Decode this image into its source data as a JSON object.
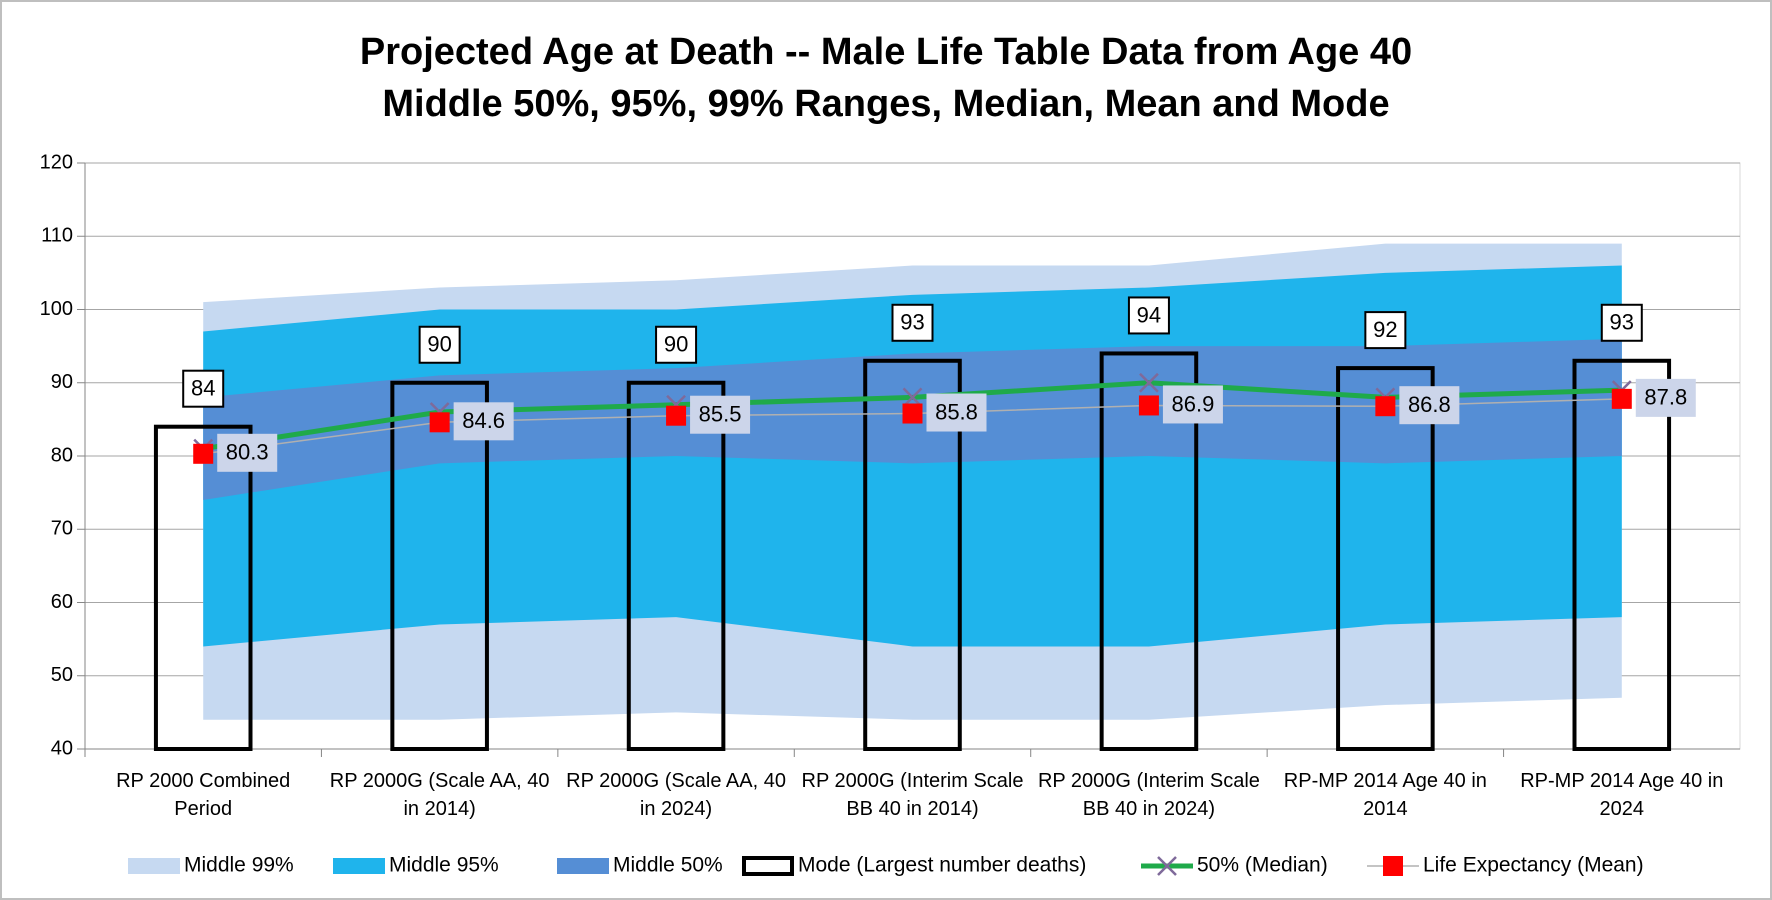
{
  "chart_data": {
    "type": "combo",
    "title": "Projected Age at Death -- Male Life Table Data from Age 40",
    "subtitle": "Middle 50%, 95%, 99% Ranges, Median, Mean and Mode",
    "categories": [
      "RP 2000 Combined Period",
      "RP 2000G (Scale AA, 40 in 2014)",
      "RP 2000G (Scale AA, 40 in 2024)",
      "RP 2000G (Interim Scale BB 40 in 2014)",
      "RP 2000G (Interim Scale BB 40 in 2024)",
      "RP-MP 2014 Age 40 in 2014",
      "RP-MP 2014 Age 40 in 2024"
    ],
    "ylim": [
      40,
      120
    ],
    "yticks": [
      40,
      50,
      60,
      70,
      80,
      90,
      100,
      110,
      120
    ],
    "grid": true,
    "series": [
      {
        "name": "Middle 99%",
        "kind": "range",
        "color": "#c6d9f1",
        "low": [
          44,
          44,
          45,
          44,
          44,
          46,
          47
        ],
        "high": [
          101,
          103,
          104,
          106,
          106,
          109,
          109
        ]
      },
      {
        "name": "Middle 95%",
        "kind": "range",
        "color": "#1fb4ec",
        "low": [
          54,
          57,
          58,
          54,
          54,
          57,
          58
        ],
        "high": [
          97,
          100,
          100,
          102,
          103,
          105,
          106
        ]
      },
      {
        "name": "Middle 50%",
        "kind": "range",
        "color": "#558ed5",
        "low": [
          74,
          79,
          80,
          79,
          80,
          79,
          80
        ],
        "high": [
          88,
          91,
          92,
          94,
          95,
          95,
          96
        ]
      },
      {
        "name": "Mode (Largest number deaths)",
        "kind": "bar",
        "color": "#000000",
        "values": [
          84,
          90,
          90,
          93,
          94,
          92,
          93
        ]
      },
      {
        "name": "50% (Median)",
        "kind": "line",
        "color": "#1faa4a",
        "marker_color": "#7f6a9a",
        "values": [
          81,
          86,
          87,
          88,
          90,
          88,
          89
        ]
      },
      {
        "name": "Life Expectancy (Mean)",
        "kind": "line",
        "color": "#b0b0b0",
        "marker_color": "#ff0000",
        "values": [
          80.3,
          84.6,
          85.5,
          85.8,
          86.9,
          86.8,
          87.8
        ]
      }
    ]
  }
}
